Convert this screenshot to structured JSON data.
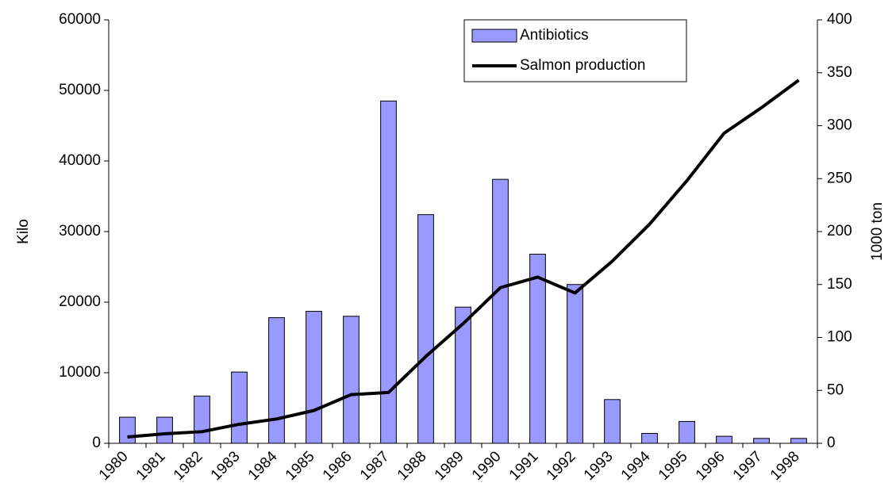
{
  "chart_data": {
    "type": "bar_line",
    "categories": [
      "1980",
      "1981",
      "1982",
      "1983",
      "1984",
      "1985",
      "1986",
      "1987",
      "1988",
      "1989",
      "1990",
      "1991",
      "1992",
      "1993",
      "1994",
      "1995",
      "1996",
      "1997",
      "1998"
    ],
    "series": [
      {
        "name": "Antibiotics",
        "type": "bar",
        "color": "#9999ff",
        "axis": "y",
        "values": [
          3700,
          3700,
          6700,
          10100,
          17800,
          18700,
          18000,
          48500,
          32400,
          19300,
          37400,
          26800,
          22500,
          6200,
          1400,
          3100,
          1000,
          700,
          700
        ]
      },
      {
        "name": "Salmon production",
        "type": "line",
        "color": "#000000",
        "axis": "y2",
        "values": [
          6,
          9,
          11,
          18,
          23,
          31,
          46,
          48,
          82,
          113,
          147,
          157,
          142,
          172,
          207,
          248,
          293,
          317,
          343
        ]
      }
    ],
    "ylabel": "Kilo",
    "y2label": "1000 ton",
    "ylim": [
      0,
      60000
    ],
    "yticks": [
      0,
      10000,
      20000,
      30000,
      40000,
      50000,
      60000
    ],
    "y2lim": [
      0,
      400
    ],
    "y2ticks": [
      0,
      50,
      100,
      150,
      200,
      250,
      300,
      350,
      400
    ],
    "grid": false,
    "legend": "top-right"
  }
}
